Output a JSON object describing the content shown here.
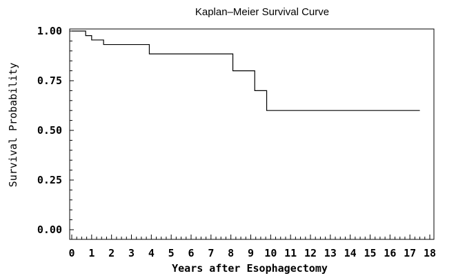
{
  "chart_data": {
    "type": "line",
    "step": true,
    "title": "Kaplan–Meier Survival Curve",
    "xlabel": "Years after Esophagectomy",
    "ylabel": "Survival Probability",
    "xlim": [
      0,
      18
    ],
    "ylim": [
      0,
      1
    ],
    "x_ticks": [
      "0",
      "1",
      "2",
      "3",
      "4",
      "5",
      "6",
      "7",
      "8",
      "9",
      "10",
      "11",
      "12",
      "13",
      "14",
      "15",
      "16",
      "17",
      "18"
    ],
    "y_ticks": [
      "0.00",
      "0.25",
      "0.50",
      "0.75",
      "1.00"
    ],
    "grid": false,
    "legend": "none",
    "series": [
      {
        "x": [
          0,
          0.7,
          1.0,
          1.6,
          3.9,
          8.1,
          9.2,
          9.8,
          17.5
        ],
        "y": [
          1.0,
          0.977,
          0.955,
          0.932,
          0.885,
          0.8,
          0.7,
          0.6,
          0.6
        ]
      }
    ],
    "colors": {
      "line": "#000000",
      "axis": "#000000"
    }
  }
}
